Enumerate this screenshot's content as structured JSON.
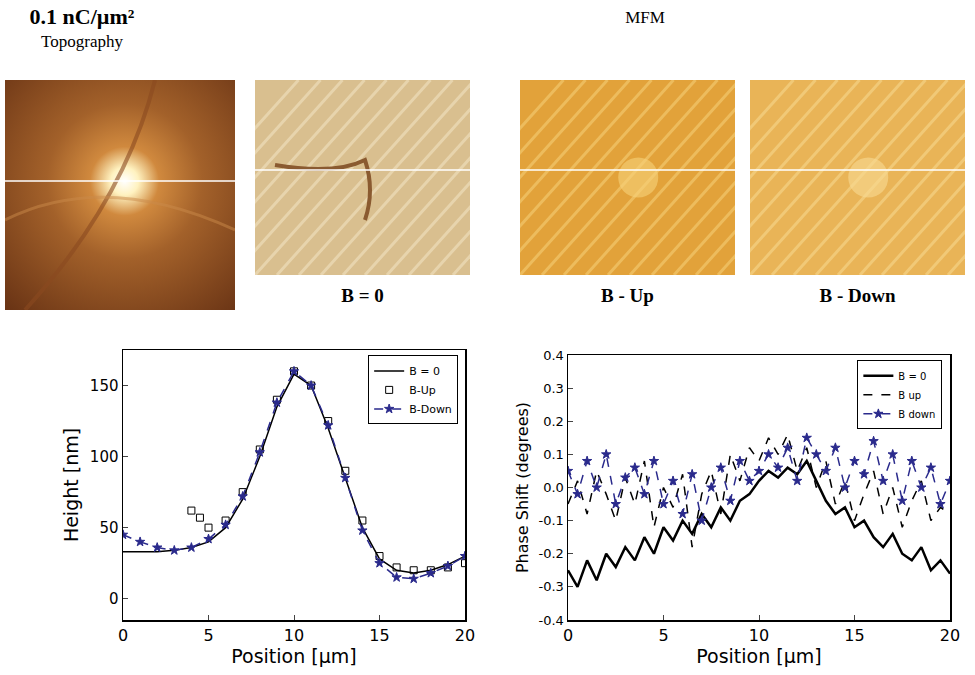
{
  "images": {
    "title": "0.1 nC/µm²",
    "topography_label": "Topography",
    "mfm_label": "MFM",
    "panel_labels": [
      "B = 0",
      "B - Up",
      "B - Down"
    ]
  },
  "chart_data": [
    {
      "type": "line",
      "x_label": "Position [µm]",
      "y_label": "Height [nm]",
      "xlim": [
        0,
        20
      ],
      "xticks": [
        0,
        5,
        10,
        15,
        20
      ],
      "ylim": [
        -15,
        175
      ],
      "yticks": [
        0,
        50,
        100,
        150
      ],
      "grid": false,
      "legend": "top right",
      "series": [
        {
          "name": "B = 0",
          "color": "#000000",
          "line_style": "solid",
          "marker": "none",
          "x": [
            0,
            1,
            2,
            3,
            4,
            5,
            6,
            7,
            8,
            9,
            10,
            11,
            12,
            13,
            14,
            15,
            16,
            17,
            18,
            19,
            20
          ],
          "values": [
            33,
            33,
            33,
            34,
            36,
            40,
            50,
            70,
            100,
            135,
            158,
            150,
            120,
            85,
            50,
            28,
            20,
            18,
            20,
            24,
            30
          ]
        },
        {
          "name": "B-Up",
          "color": "#000000",
          "line_style": "none",
          "marker": "square-open",
          "x": [
            4,
            4.5,
            5,
            6,
            7,
            8,
            9,
            10,
            11,
            12,
            13,
            14,
            15,
            16,
            17,
            18,
            19,
            20
          ],
          "values": [
            62,
            57,
            50,
            55,
            75,
            105,
            140,
            160,
            150,
            125,
            90,
            55,
            30,
            22,
            20,
            20,
            22,
            25
          ]
        },
        {
          "name": "B-Down",
          "color": "#2a2a8c",
          "line_style": "dash",
          "marker": "star",
          "x": [
            0,
            1,
            2,
            3,
            4,
            5,
            6,
            7,
            8,
            9,
            10,
            11,
            12,
            13,
            14,
            15,
            16,
            17,
            18,
            19,
            20
          ],
          "values": [
            45,
            40,
            36,
            34,
            36,
            42,
            52,
            72,
            103,
            138,
            160,
            150,
            122,
            85,
            48,
            25,
            15,
            14,
            18,
            23,
            30
          ]
        }
      ]
    },
    {
      "type": "line",
      "x_label": "Position [µm]",
      "y_label": "Phase Shift (degrees)",
      "xlim": [
        0,
        20
      ],
      "xticks": [
        0,
        5,
        10,
        15,
        20
      ],
      "ylim": [
        -0.4,
        0.4
      ],
      "yticks": [
        -0.4,
        -0.3,
        -0.2,
        -0.1,
        {
          "value": 0,
          "label": "0.0"
        },
        0.1,
        0.2,
        0.3,
        0.4
      ],
      "grid": false,
      "legend": "top right",
      "series": [
        {
          "name": "B = 0",
          "color": "#000000",
          "line_style": "solid",
          "marker": "none",
          "x": [
            0,
            0.5,
            1,
            1.5,
            2,
            2.5,
            3,
            3.5,
            4,
            4.5,
            5,
            5.5,
            6,
            6.5,
            7,
            7.5,
            8,
            8.5,
            9,
            9.5,
            10,
            10.5,
            11,
            11.5,
            12,
            12.5,
            13,
            13.5,
            14,
            14.5,
            15,
            15.5,
            16,
            16.5,
            17,
            17.5,
            18,
            18.5,
            19,
            19.5,
            20
          ],
          "values": [
            -0.25,
            -0.3,
            -0.22,
            -0.28,
            -0.2,
            -0.24,
            -0.18,
            -0.22,
            -0.15,
            -0.2,
            -0.12,
            -0.16,
            -0.1,
            -0.14,
            -0.08,
            -0.12,
            -0.06,
            -0.1,
            -0.04,
            -0.02,
            0.02,
            0.05,
            0.03,
            0.06,
            0.04,
            0.08,
            0.02,
            -0.04,
            -0.08,
            -0.06,
            -0.12,
            -0.1,
            -0.15,
            -0.18,
            -0.14,
            -0.2,
            -0.22,
            -0.18,
            -0.25,
            -0.22,
            -0.26
          ]
        },
        {
          "name": "B up",
          "color": "#000000",
          "line_style": "dash",
          "marker": "none",
          "x": [
            0,
            0.5,
            1,
            1.5,
            2,
            2.5,
            3,
            3.5,
            4,
            4.5,
            5,
            5.5,
            6,
            6.5,
            7,
            7.5,
            8,
            8.5,
            9,
            9.5,
            10,
            10.5,
            11,
            11.5,
            12,
            12.5,
            13,
            13.5,
            14,
            14.5,
            15,
            15.5,
            16,
            16.5,
            17,
            17.5,
            18,
            18.5,
            19,
            19.5,
            20
          ],
          "values": [
            -0.05,
            0.02,
            -0.08,
            0.05,
            -0.02,
            -0.1,
            0.03,
            -0.05,
            0.08,
            -0.12,
            0.0,
            -0.06,
            0.04,
            -0.18,
            -0.02,
            0.05,
            -0.08,
            0.1,
            0.02,
            0.12,
            0.08,
            0.15,
            0.1,
            0.16,
            0.05,
            0.12,
            0.0,
            0.08,
            -0.05,
            0.02,
            -0.1,
            -0.02,
            0.05,
            -0.08,
            0.0,
            -0.12,
            -0.04,
            0.02,
            -0.1,
            -0.06,
            -0.08
          ]
        },
        {
          "name": "B down",
          "color": "#2a2a8c",
          "line_style": "dash",
          "marker": "star",
          "x": [
            0,
            0.5,
            1,
            1.5,
            2,
            2.5,
            3,
            3.5,
            4,
            4.5,
            5,
            5.5,
            6,
            6.5,
            7,
            7.5,
            8,
            8.5,
            9,
            9.5,
            10,
            10.5,
            11,
            11.5,
            12,
            12.5,
            13,
            13.5,
            14,
            14.5,
            15,
            15.5,
            16,
            16.5,
            17,
            17.5,
            18,
            18.5,
            19,
            19.5,
            20
          ],
          "values": [
            0.05,
            -0.02,
            0.08,
            0.0,
            0.1,
            -0.05,
            0.03,
            0.06,
            -0.02,
            0.08,
            -0.05,
            0.02,
            -0.08,
            0.04,
            -0.1,
            0.0,
            0.06,
            -0.04,
            0.08,
            0.02,
            0.05,
            0.1,
            0.06,
            0.12,
            0.02,
            0.15,
            0.1,
            0.05,
            0.12,
            0.0,
            0.08,
            0.04,
            0.14,
            0.02,
            0.1,
            -0.04,
            0.08,
            0.0,
            0.06,
            -0.05,
            0.02
          ]
        }
      ]
    }
  ]
}
